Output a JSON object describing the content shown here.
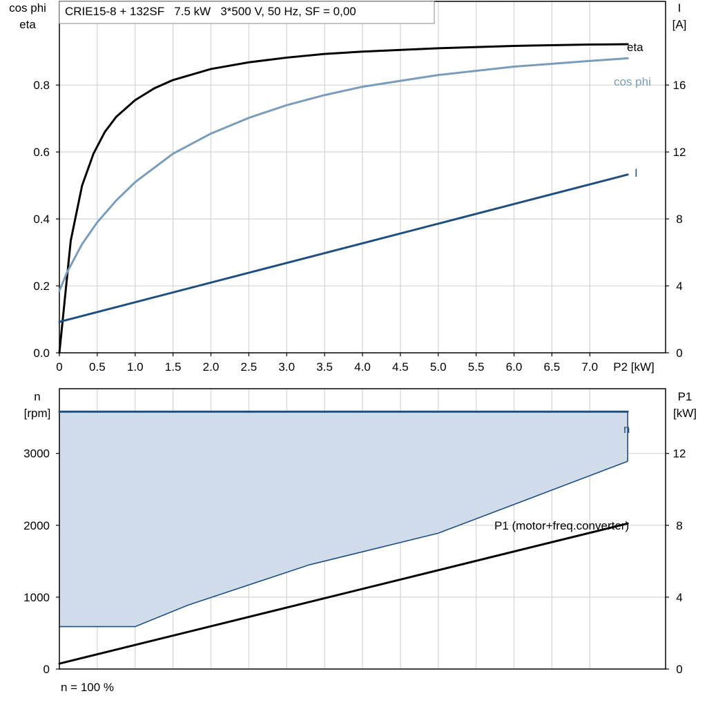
{
  "chart_data": [
    {
      "type": "line",
      "title": "CRIE15-8 + 132SF   7.5 kW   3*500 V, 50 Hz, SF = 0,00",
      "xlabel": "P2 [kW]",
      "ylabel_left": [
        "cos phi",
        "eta"
      ],
      "ylabel_right": [
        "I",
        "[A]"
      ],
      "xlim": [
        0,
        8.0
      ],
      "ylim_left": [
        0,
        1.05
      ],
      "ylim_right": [
        0,
        21
      ],
      "x_ticks": [
        0,
        0.5,
        1.0,
        1.5,
        2.0,
        2.5,
        3.0,
        3.5,
        4.0,
        4.5,
        5.0,
        5.5,
        6.0,
        6.5,
        7.0
      ],
      "x_tick_labels": [
        "0",
        "0.5",
        "1.0",
        "1.5",
        "2.0",
        "2.5",
        "3.0",
        "3.5",
        "4.0",
        "4.5",
        "5.0",
        "5.5",
        "6.0",
        "6.5",
        "7.0"
      ],
      "y_left_ticks": [
        0,
        0.2,
        0.4,
        0.6,
        0.8
      ],
      "y_left_tick_labels": [
        "0.0",
        "0.2",
        "0.4",
        "0.6",
        "0.8"
      ],
      "y_right_ticks": [
        0,
        4,
        8,
        12,
        16
      ],
      "y_right_tick_labels": [
        "0",
        "4",
        "8",
        "12",
        "16"
      ],
      "grid": true,
      "series": [
        {
          "name": "eta",
          "axis": "left",
          "color": "#000000",
          "x": [
            0,
            0.15,
            0.3,
            0.45,
            0.6,
            0.75,
            1.0,
            1.25,
            1.5,
            2.0,
            2.5,
            3.0,
            3.5,
            4.0,
            5.0,
            6.0,
            7.0,
            7.5
          ],
          "y": [
            0,
            0.335,
            0.5,
            0.595,
            0.66,
            0.705,
            0.755,
            0.79,
            0.815,
            0.848,
            0.868,
            0.882,
            0.893,
            0.9,
            0.91,
            0.917,
            0.921,
            0.922
          ]
        },
        {
          "name": "cos phi",
          "axis": "left",
          "color": "#7a9cbc",
          "x": [
            0,
            0.1,
            0.3,
            0.5,
            0.75,
            1.0,
            1.5,
            2.0,
            2.5,
            3.0,
            3.5,
            4.0,
            5.0,
            6.0,
            7.0,
            7.5
          ],
          "y": [
            0.185,
            0.24,
            0.325,
            0.39,
            0.455,
            0.51,
            0.595,
            0.655,
            0.702,
            0.74,
            0.77,
            0.795,
            0.83,
            0.855,
            0.872,
            0.88
          ]
        },
        {
          "name": "I",
          "axis": "right",
          "color": "#1f4e80",
          "x": [
            0,
            7.5
          ],
          "y": [
            1.85,
            10.65
          ]
        }
      ]
    },
    {
      "type": "area",
      "xlabel": "",
      "ylabel_left": [
        "n",
        "[rpm]"
      ],
      "ylabel_right": [
        "P1",
        "[kW]"
      ],
      "footnote": "n = 100 %",
      "xlim": [
        0,
        8.0
      ],
      "ylim_left": [
        0,
        3900
      ],
      "ylim_right": [
        0,
        15.6
      ],
      "x_ticks": [
        0,
        0.5,
        1.0,
        1.5,
        2.0,
        2.5,
        3.0,
        3.5,
        4.0,
        4.5,
        5.0,
        5.5,
        6.0,
        6.5,
        7.0
      ],
      "y_left_ticks": [
        0,
        1000,
        2000,
        3000
      ],
      "y_left_tick_labels": [
        "0",
        "1000",
        "2000",
        "3000"
      ],
      "y_right_ticks": [
        0,
        4,
        8,
        12
      ],
      "y_right_tick_labels": [
        "0",
        "4",
        "8",
        "12"
      ],
      "grid": true,
      "region": {
        "upper": {
          "x": [
            0,
            7.5
          ],
          "y": [
            3580,
            3580
          ]
        },
        "lower": {
          "x": [
            0,
            1.0,
            1.7,
            3.3,
            5.0,
            7.5
          ],
          "y": [
            590,
            590,
            890,
            1450,
            1890,
            2890
          ]
        },
        "fill": "#d1dcea",
        "stroke": "#1f4e80"
      },
      "series": [
        {
          "name": "n",
          "axis": "left",
          "color": "#1f4e80",
          "x": [
            0,
            7.5
          ],
          "y": [
            3580,
            3580
          ]
        },
        {
          "name": "P1 (motor+freq.converter)",
          "axis": "right",
          "color": "#000000",
          "x": [
            0,
            7.5
          ],
          "y": [
            0.3,
            8.1
          ]
        }
      ]
    }
  ]
}
